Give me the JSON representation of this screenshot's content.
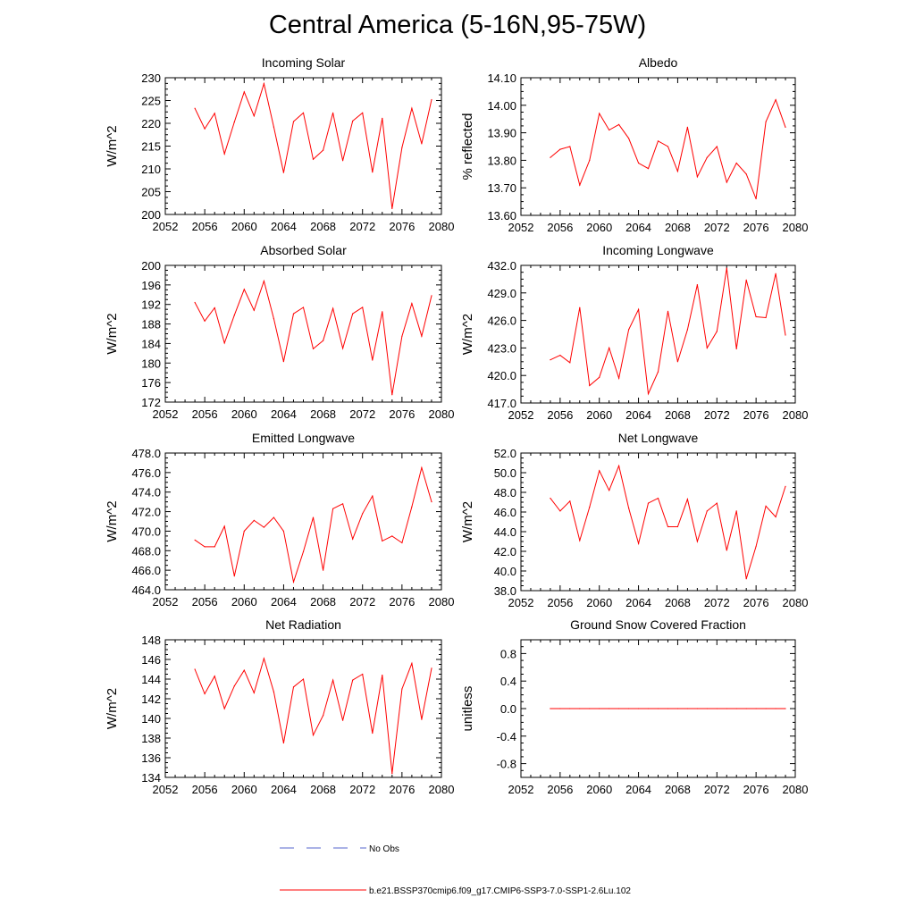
{
  "title": "Central America (5-16N,95-75W)",
  "colors": {
    "series": "#ff0000",
    "obs": "#5566cc",
    "axis": "#000000"
  },
  "legend": {
    "obs_label": "No Obs",
    "series_label": "b.e21.BSSP370cmip6.f09_g17.CMIP6-SSP3-7.0-SSP1-2.6Lu.102"
  },
  "chart_data": [
    {
      "type": "line",
      "title": "Incoming Solar",
      "ylabel": "W/m^2",
      "xlim": [
        2052,
        2080
      ],
      "ylim": [
        200,
        230
      ],
      "xticks": [
        2052,
        2056,
        2060,
        2064,
        2068,
        2072,
        2076,
        2080
      ],
      "yticks": [
        200,
        205,
        210,
        215,
        220,
        225,
        230
      ],
      "ytick_labels": [
        "200",
        "205",
        "210",
        "215",
        "220",
        "225",
        "230"
      ],
      "x": [
        2055,
        2056,
        2057,
        2058,
        2059,
        2060,
        2061,
        2062,
        2063,
        2064,
        2065,
        2066,
        2067,
        2068,
        2069,
        2070,
        2071,
        2072,
        2073,
        2074,
        2075,
        2076,
        2077,
        2078,
        2079
      ],
      "values": [
        223.3,
        218.8,
        222.2,
        213.3,
        220.3,
        226.9,
        221.6,
        228.7,
        219.2,
        209.2,
        220.4,
        222.3,
        212.1,
        214.1,
        222.3,
        211.8,
        220.5,
        222.3,
        209.3,
        221.1,
        201.3,
        214.7,
        223.3,
        215.5,
        225.2
      ]
    },
    {
      "type": "line",
      "title": "Albedo",
      "ylabel": "% reflected",
      "xlim": [
        2052,
        2080
      ],
      "ylim": [
        13.6,
        14.1
      ],
      "xticks": [
        2052,
        2056,
        2060,
        2064,
        2068,
        2072,
        2076,
        2080
      ],
      "yticks": [
        13.6,
        13.7,
        13.8,
        13.9,
        14.0,
        14.1
      ],
      "ytick_labels": [
        "13.60",
        "13.70",
        "13.80",
        "13.90",
        "14.00",
        "14.10"
      ],
      "x": [
        2055,
        2056,
        2057,
        2058,
        2059,
        2060,
        2061,
        2062,
        2063,
        2064,
        2065,
        2066,
        2067,
        2068,
        2069,
        2070,
        2071,
        2072,
        2073,
        2074,
        2075,
        2076,
        2077,
        2078,
        2079
      ],
      "values": [
        13.81,
        13.84,
        13.85,
        13.71,
        13.8,
        13.97,
        13.91,
        13.93,
        13.88,
        13.79,
        13.77,
        13.87,
        13.85,
        13.76,
        13.92,
        13.74,
        13.81,
        13.85,
        13.72,
        13.79,
        13.75,
        13.66,
        13.94,
        14.02,
        13.92
      ]
    },
    {
      "type": "line",
      "title": "Absorbed Solar",
      "ylabel": "W/m^2",
      "xlim": [
        2052,
        2080
      ],
      "ylim": [
        172,
        200
      ],
      "xticks": [
        2052,
        2056,
        2060,
        2064,
        2068,
        2072,
        2076,
        2080
      ],
      "yticks": [
        172,
        176,
        180,
        184,
        188,
        192,
        196,
        200
      ],
      "ytick_labels": [
        "172",
        "176",
        "180",
        "184",
        "188",
        "192",
        "196",
        "200"
      ],
      "x": [
        2055,
        2056,
        2057,
        2058,
        2059,
        2060,
        2061,
        2062,
        2063,
        2064,
        2065,
        2066,
        2067,
        2068,
        2069,
        2070,
        2071,
        2072,
        2073,
        2074,
        2075,
        2076,
        2077,
        2078,
        2079
      ],
      "values": [
        192.4,
        188.6,
        191.3,
        184.1,
        189.8,
        195.1,
        190.8,
        196.8,
        189.1,
        180.3,
        190.1,
        191.4,
        182.9,
        184.6,
        191.2,
        183.0,
        190.1,
        191.4,
        180.6,
        190.5,
        173.5,
        185.5,
        192.2,
        185.5,
        193.8
      ]
    },
    {
      "type": "line",
      "title": "Incoming Longwave",
      "ylabel": "W/m^2",
      "xlim": [
        2052,
        2080
      ],
      "ylim": [
        417,
        432
      ],
      "xticks": [
        2052,
        2056,
        2060,
        2064,
        2068,
        2072,
        2076,
        2080
      ],
      "yticks": [
        417,
        420,
        423,
        426,
        429,
        432
      ],
      "ytick_labels": [
        "417.0",
        "420.0",
        "423.0",
        "426.0",
        "429.0",
        "432.0"
      ],
      "x": [
        2055,
        2056,
        2057,
        2058,
        2059,
        2060,
        2061,
        2062,
        2063,
        2064,
        2065,
        2066,
        2067,
        2068,
        2069,
        2070,
        2071,
        2072,
        2073,
        2074,
        2075,
        2076,
        2077,
        2078,
        2079
      ],
      "values": [
        421.7,
        422.2,
        421.4,
        427.4,
        418.9,
        419.8,
        423.0,
        419.7,
        425.0,
        427.2,
        418.0,
        420.4,
        427.0,
        421.5,
        425.0,
        429.9,
        423.0,
        424.8,
        431.7,
        422.9,
        430.4,
        426.4,
        426.3,
        431.1,
        424.4
      ]
    },
    {
      "type": "line",
      "title": "Emitted Longwave",
      "ylabel": "W/m^2",
      "xlim": [
        2052,
        2080
      ],
      "ylim": [
        464,
        478
      ],
      "xticks": [
        2052,
        2056,
        2060,
        2064,
        2068,
        2072,
        2076,
        2080
      ],
      "yticks": [
        464,
        466,
        468,
        470,
        472,
        474,
        476,
        478
      ],
      "ytick_labels": [
        "464.0",
        "466.0",
        "468.0",
        "470.0",
        "472.0",
        "474.0",
        "476.0",
        "478.0"
      ],
      "x": [
        2055,
        2056,
        2057,
        2058,
        2059,
        2060,
        2061,
        2062,
        2063,
        2064,
        2065,
        2066,
        2067,
        2068,
        2069,
        2070,
        2071,
        2072,
        2073,
        2074,
        2075,
        2076,
        2077,
        2078,
        2079
      ],
      "values": [
        469.1,
        468.4,
        468.4,
        470.5,
        465.4,
        470.0,
        471.1,
        470.4,
        471.4,
        470.0,
        464.8,
        467.9,
        471.4,
        466.0,
        472.3,
        472.8,
        469.2,
        471.8,
        473.6,
        469.0,
        469.5,
        468.8,
        472.5,
        476.5,
        473.0
      ]
    },
    {
      "type": "line",
      "title": "Net Longwave",
      "ylabel": "W/m^2",
      "xlim": [
        2052,
        2080
      ],
      "ylim": [
        38,
        52
      ],
      "xticks": [
        2052,
        2056,
        2060,
        2064,
        2068,
        2072,
        2076,
        2080
      ],
      "yticks": [
        38,
        40,
        42,
        44,
        46,
        48,
        50,
        52
      ],
      "ytick_labels": [
        "38.0",
        "40.0",
        "42.0",
        "44.0",
        "46.0",
        "48.0",
        "50.0",
        "52.0"
      ],
      "x": [
        2055,
        2056,
        2057,
        2058,
        2059,
        2060,
        2061,
        2062,
        2063,
        2064,
        2065,
        2066,
        2067,
        2068,
        2069,
        2070,
        2071,
        2072,
        2073,
        2074,
        2075,
        2076,
        2077,
        2078,
        2079
      ],
      "values": [
        47.4,
        46.1,
        47.1,
        43.1,
        46.5,
        50.2,
        48.2,
        50.7,
        46.4,
        42.8,
        46.9,
        47.4,
        44.5,
        44.5,
        47.3,
        43.0,
        46.1,
        46.9,
        42.1,
        46.1,
        39.2,
        42.5,
        46.6,
        45.5,
        48.6
      ]
    },
    {
      "type": "line",
      "title": "Net Radiation",
      "ylabel": "W/m^2",
      "xlim": [
        2052,
        2080
      ],
      "ylim": [
        134,
        148
      ],
      "xticks": [
        2052,
        2056,
        2060,
        2064,
        2068,
        2072,
        2076,
        2080
      ],
      "yticks": [
        134,
        136,
        138,
        140,
        142,
        144,
        146,
        148
      ],
      "ytick_labels": [
        "134",
        "136",
        "138",
        "140",
        "142",
        "144",
        "146",
        "148"
      ],
      "x": [
        2055,
        2056,
        2057,
        2058,
        2059,
        2060,
        2061,
        2062,
        2063,
        2064,
        2065,
        2066,
        2067,
        2068,
        2069,
        2070,
        2071,
        2072,
        2073,
        2074,
        2075,
        2076,
        2077,
        2078,
        2079
      ],
      "values": [
        145.0,
        142.5,
        144.3,
        141.0,
        143.3,
        144.9,
        142.6,
        146.1,
        142.7,
        137.5,
        143.2,
        144.0,
        138.3,
        140.3,
        143.9,
        139.8,
        143.9,
        144.5,
        138.5,
        144.4,
        134.4,
        143.0,
        145.6,
        139.9,
        145.1
      ]
    },
    {
      "type": "line",
      "title": "Ground Snow Covered Fraction",
      "ylabel": "unitless",
      "xlim": [
        2052,
        2080
      ],
      "ylim": [
        -1.0,
        1.0
      ],
      "xticks": [
        2052,
        2056,
        2060,
        2064,
        2068,
        2072,
        2076,
        2080
      ],
      "yticks": [
        -0.8,
        -0.4,
        0.0,
        0.4,
        0.8
      ],
      "ytick_labels": [
        "-0.8",
        "-0.4",
        "0.0",
        "0.4",
        "0.8"
      ],
      "x": [
        2055,
        2056,
        2057,
        2058,
        2059,
        2060,
        2061,
        2062,
        2063,
        2064,
        2065,
        2066,
        2067,
        2068,
        2069,
        2070,
        2071,
        2072,
        2073,
        2074,
        2075,
        2076,
        2077,
        2078,
        2079
      ],
      "values": [
        0,
        0,
        0,
        0,
        0,
        0,
        0,
        0,
        0,
        0,
        0,
        0,
        0,
        0,
        0,
        0,
        0,
        0,
        0,
        0,
        0,
        0,
        0,
        0,
        0
      ]
    }
  ]
}
